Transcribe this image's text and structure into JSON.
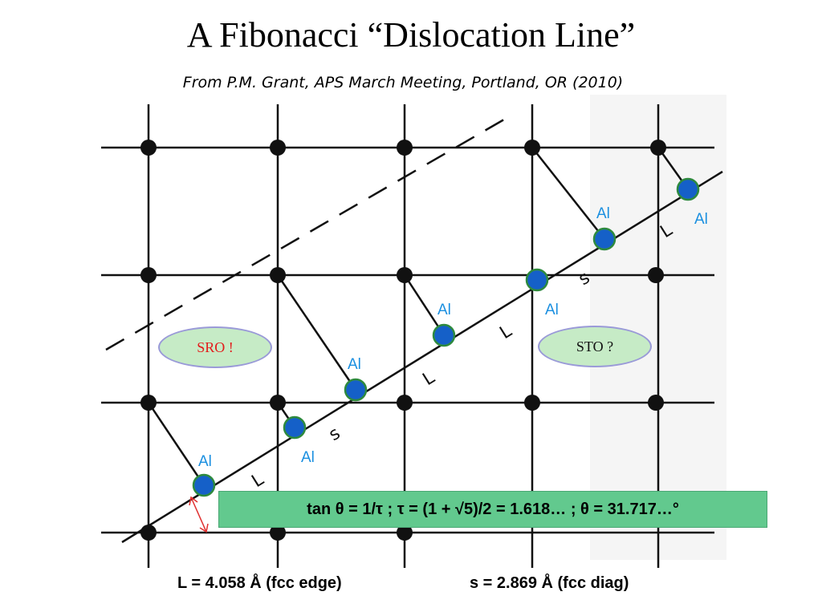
{
  "title": "A Fibonacci “Dislocation Line”",
  "subtitle": "From P.M. Grant, APS March Meeting, Portland, OR (2010)",
  "al_label": "Al",
  "segment_long": "L",
  "segment_short": "s",
  "sro_label": "SRO !",
  "sto_label": "STO ?",
  "formula": "tan θ = 1/τ ; τ = (1 + √5)/2 = 1.618… ; θ = 31.717…°",
  "L_caption": "L = 4.058 Å (fcc edge)",
  "s_caption": "s = 2.869 Å (fcc diag)",
  "colors": {
    "al_atom": "#1560c8",
    "al_outline": "#2e8a3e",
    "al_text": "#1a8fe0",
    "sro_text": "#e31b1b",
    "formula_bg": "#62c98e",
    "oval_fill": "#c6ebc6",
    "arrow": "#e03030"
  }
}
